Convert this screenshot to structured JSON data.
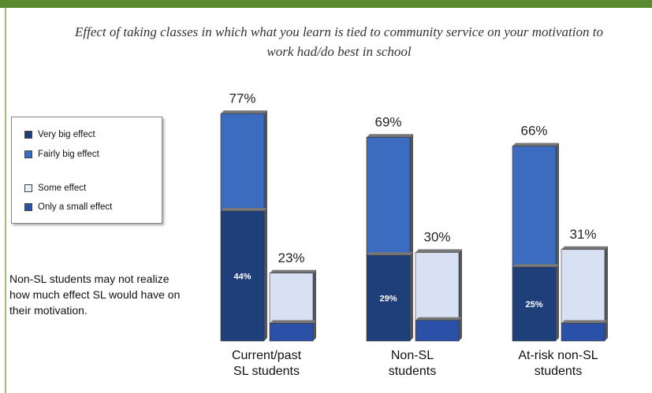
{
  "title": "Effect of taking classes in which what you learn is tied to community service on your motivation to work had/do best in school",
  "note": "Non-SL students may not realize how much effect SL would have on their motivation.",
  "colors": {
    "very_big": "#1f3f7a",
    "fairly_big": "#3c6cc0",
    "some": "#d7e1f3",
    "small": "#2a50a8",
    "top_bar": "#5a8a30"
  },
  "legend": [
    {
      "label": "Very big effect",
      "color": "#1f3f7a"
    },
    {
      "label": "Fairly big effect",
      "color": "#3c6cc0"
    },
    {
      "label": "Some effect",
      "color": "#e8edf7"
    },
    {
      "label": "Only a small effect",
      "color": "#2a50a8"
    }
  ],
  "chart_data": {
    "type": "bar",
    "title": "Effect of taking classes in which what you learn is tied to community service on your motivation to work had/do best in school",
    "categories": [
      {
        "label_lines": [
          "Current/past",
          "SL students"
        ]
      },
      {
        "label_lines": [
          "Non-SL",
          "students"
        ]
      },
      {
        "label_lines": [
          "At-risk non-SL",
          "students"
        ]
      }
    ],
    "series": [
      {
        "name": "Very big effect",
        "values": [
          44,
          29,
          25
        ]
      },
      {
        "name": "Fairly big effect",
        "values": [
          33,
          40,
          41
        ]
      },
      {
        "name": "Some effect",
        "values": [
          17,
          23,
          25
        ]
      },
      {
        "name": "Only a small effect",
        "values": [
          6,
          7,
          6
        ]
      }
    ],
    "big_effect_totals": [
      "77%",
      "69%",
      "66%"
    ],
    "some_or_small_totals": [
      "23%",
      "30%",
      "31%"
    ],
    "very_big_labels": [
      "44%",
      "29%",
      "25%"
    ],
    "ylim": [
      0,
      100
    ],
    "legend_position": "left"
  }
}
